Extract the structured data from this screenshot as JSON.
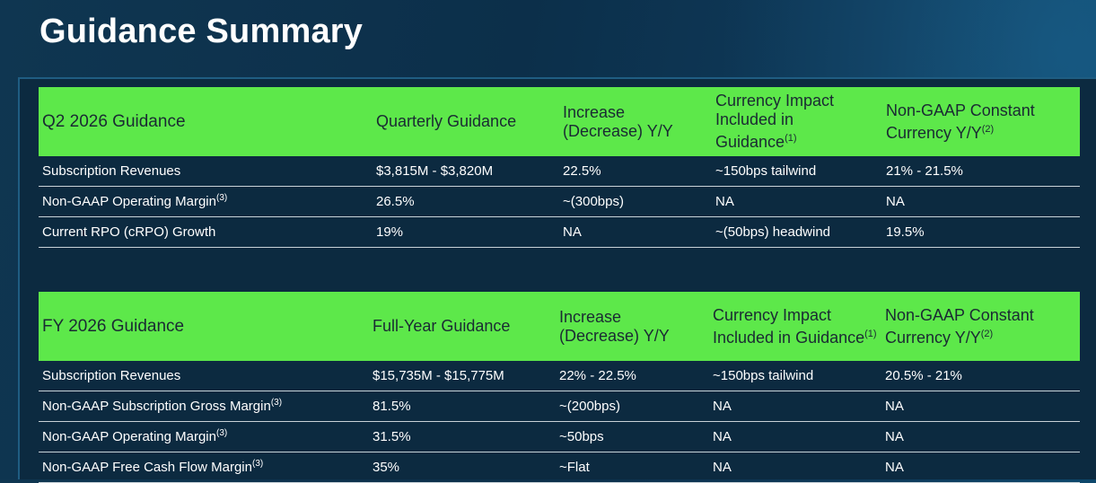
{
  "title": "Guidance Summary",
  "q2": {
    "headers": {
      "period": "Q2 2026 Guidance",
      "guidance": "Quarterly Guidance",
      "increase": "Increase (Decrease) Y/Y",
      "currency": "Currency Impact Included in Guidance",
      "currency_note": "(1)",
      "constant": "Non-GAAP Constant Currency Y/Y",
      "constant_note": "(2)"
    },
    "rows": [
      {
        "metric": "Subscription Revenues",
        "note": "",
        "guidance": "$3,815M - $3,820M",
        "increase": "22.5%",
        "currency": "~150bps tailwind",
        "constant": "21% - 21.5%"
      },
      {
        "metric": "Non-GAAP Operating Margin",
        "note": "(3)",
        "guidance": "26.5%",
        "increase": "~(300bps)",
        "currency": "NA",
        "constant": "NA"
      },
      {
        "metric": "Current RPO (cRPO) Growth",
        "note": "",
        "guidance": "19%",
        "increase": "NA",
        "currency": "~(50bps) headwind",
        "constant": "19.5%"
      }
    ]
  },
  "fy": {
    "headers": {
      "period": "FY 2026 Guidance",
      "guidance": "Full-Year Guidance",
      "increase": "Increase (Decrease) Y/Y",
      "currency": "Currency Impact Included in Guidance",
      "currency_note": "(1)",
      "constant": "Non-GAAP Constant Currency Y/Y",
      "constant_note": "(2)"
    },
    "rows": [
      {
        "metric": "Subscription Revenues",
        "note": "",
        "guidance": "$15,735M - $15,775M",
        "increase": "22% - 22.5%",
        "currency": "~150bps tailwind",
        "constant": "20.5% - 21%"
      },
      {
        "metric": "Non-GAAP Subscription Gross Margin",
        "note": "(3)",
        "guidance": "81.5%",
        "increase": "~(200bps)",
        "currency": "NA",
        "constant": "NA"
      },
      {
        "metric": "Non-GAAP Operating Margin",
        "note": "(3)",
        "guidance": "31.5%",
        "increase": "~50bps",
        "currency": "NA",
        "constant": "NA"
      },
      {
        "metric": "Non-GAAP Free Cash Flow Margin",
        "note": "(3)",
        "guidance": "35%",
        "increase": "~Flat",
        "currency": "NA",
        "constant": "NA"
      }
    ]
  },
  "colors": {
    "header_green": "#5de84a",
    "background": "#0c2f4a"
  }
}
